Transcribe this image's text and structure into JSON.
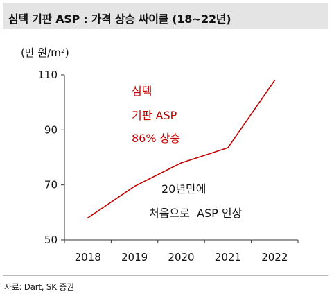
{
  "header": {
    "title": "심텍 기판 ASP : 가격 상승 싸이클 (18~22년)"
  },
  "footer": {
    "source": "자료: Dart, SK 증권"
  },
  "chart_data": {
    "type": "line",
    "title": "심텍 기판 ASP : 가격 상승 싸이클 (18~22년)",
    "unit_label": "(만 원/m²)",
    "categories": [
      "2018",
      "2019",
      "2020",
      "2021",
      "2022"
    ],
    "series": [
      {
        "values": [
          58,
          69.5,
          78,
          83.5,
          108
        ],
        "color": "#c00000"
      }
    ],
    "ylim": [
      50,
      110
    ],
    "yticks": [
      "50",
      "70",
      "90",
      "110"
    ],
    "grid": false,
    "annotations": {
      "red": [
        "심텍",
        "기판 ASP",
        "86% 상승"
      ],
      "black": [
        "20년만에",
        "처음으로  ASP 인상"
      ]
    }
  }
}
